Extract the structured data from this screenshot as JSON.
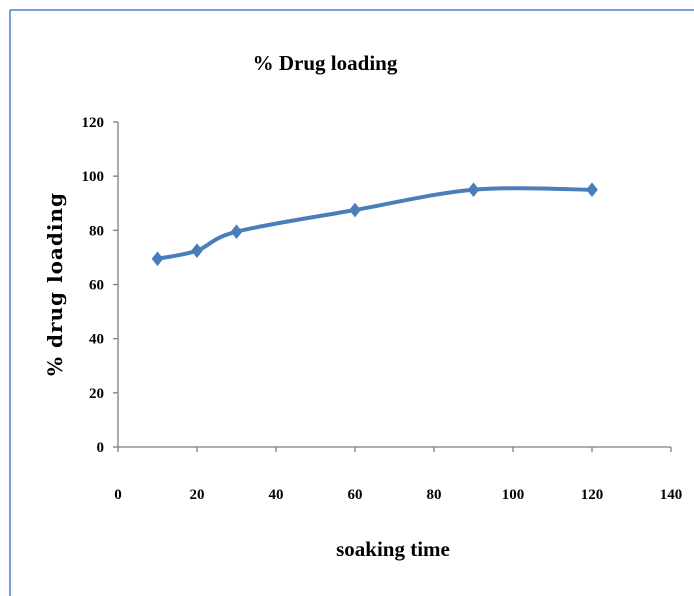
{
  "chart_data": {
    "type": "line",
    "title": "% Drug loading",
    "xlabel": "soaking time",
    "ylabel": "% drug loading",
    "xlim": [
      0,
      140
    ],
    "ylim": [
      0,
      120
    ],
    "x_ticks": [
      "0",
      "20",
      "40",
      "60",
      "80",
      "100",
      "120",
      "140"
    ],
    "y_ticks": [
      "0",
      "20",
      "40",
      "60",
      "80",
      "100",
      "120"
    ],
    "grid": false,
    "legend": "none",
    "series": [
      {
        "x": [
          10,
          20,
          30,
          60,
          90,
          120
        ],
        "values": [
          69.5,
          72.5,
          79.5,
          87.5,
          95,
          95
        ],
        "color": "#4a7ebb",
        "marker": "diamond",
        "smooth": true
      }
    ]
  },
  "colors": {
    "frame_border": "#4f81bd",
    "axis": "#7f7f7f",
    "series_line": "#4a7ebb"
  }
}
